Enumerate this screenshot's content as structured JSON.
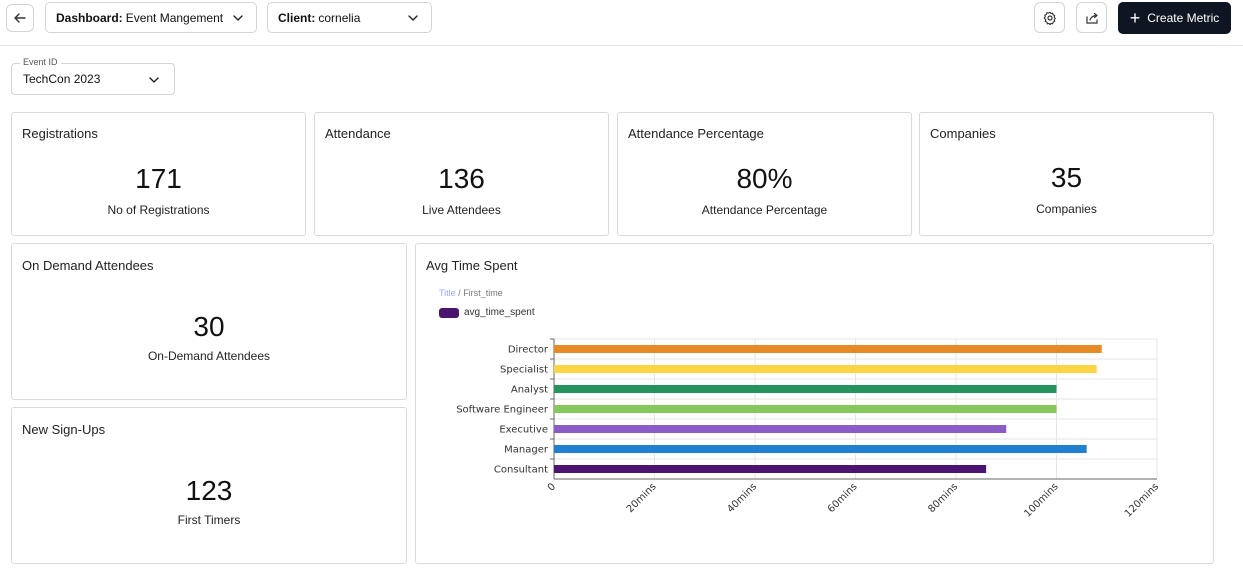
{
  "header": {
    "dashboard_key": "Dashboard:",
    "dashboard_value": "Event Mangement",
    "client_key": "Client:",
    "client_value": "cornelia",
    "create_label": "Create Metric"
  },
  "filter": {
    "label": "Event ID",
    "value": "TechCon 2023"
  },
  "cards": {
    "registrations": {
      "title": "Registrations",
      "value": "171",
      "sub": "No of Registrations"
    },
    "attendance": {
      "title": "Attendance",
      "value": "136",
      "sub": "Live Attendees"
    },
    "attendance_pct": {
      "title": "Attendance Percentage",
      "value": "80%",
      "sub": "Attendance Percentage"
    },
    "companies": {
      "title": "Companies",
      "value": "35",
      "sub": "Companies"
    },
    "on_demand": {
      "title": "On Demand Attendees",
      "value": "30",
      "sub": "On-Demand Attendees"
    },
    "new_signups": {
      "title": "New Sign-Ups",
      "value": "123",
      "sub": "First Timers"
    }
  },
  "chart_card": {
    "title": "Avg Time Spent",
    "breadcrumb_title": "Title",
    "breadcrumb_sep": " / ",
    "breadcrumb_field": "First_time",
    "series_label": "avg_time_spent"
  },
  "icons": {
    "back": "arrow-left-icon",
    "chevron": "chevron-down-icon",
    "settings": "gear-icon",
    "share": "share-icon",
    "plus": "plus-icon"
  },
  "chart_data": {
    "type": "bar",
    "orientation": "horizontal",
    "categories": [
      "Director",
      "Specialist",
      "Analyst",
      "Software Engineer",
      "Executive",
      "Manager",
      "Consultant"
    ],
    "values": [
      109,
      108,
      100,
      100,
      90,
      106,
      86
    ],
    "colors": [
      "#e88a24",
      "#fdd544",
      "#25945c",
      "#86c85a",
      "#8b5cc6",
      "#1f7fd0",
      "#4a1470"
    ],
    "series": [
      {
        "name": "avg_time_spent",
        "values": [
          109,
          108,
          100,
          100,
          90,
          106,
          86
        ]
      }
    ],
    "xticks": [
      "0",
      "20mins",
      "40mins",
      "60mins",
      "80mins",
      "100mins",
      "120mins"
    ],
    "xlim": [
      0,
      120
    ],
    "grid": true,
    "legend": "top-left"
  }
}
